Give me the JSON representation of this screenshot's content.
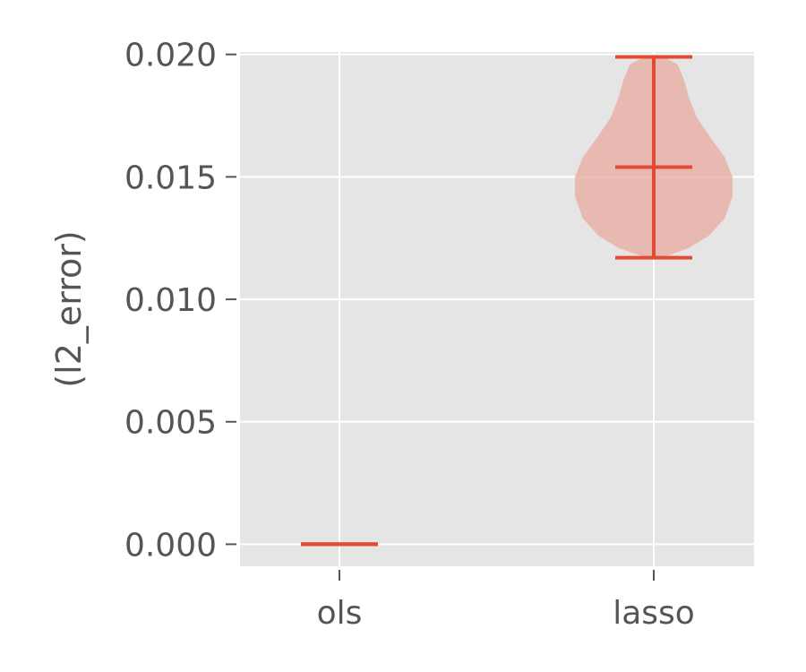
{
  "chart_data": {
    "type": "violin",
    "categories": [
      "ols",
      "lasso"
    ],
    "ylabel": "(l2_error)",
    "xlabel": "",
    "ylim": [
      -0.0009,
      0.0201
    ],
    "yticks": [
      0.0,
      0.005,
      0.01,
      0.015,
      0.02
    ],
    "ytick_labels": [
      "0.000",
      "0.005",
      "0.010",
      "0.015",
      "0.020"
    ],
    "grid": true,
    "series": [
      {
        "category": "ols",
        "min": 0.0,
        "max": 0.0,
        "mean": 0.0,
        "density": []
      },
      {
        "category": "lasso",
        "min": 0.0117,
        "max": 0.0199,
        "mean": 0.0154,
        "density": [
          [
            0.0117,
            0.1
          ],
          [
            0.0121,
            0.45
          ],
          [
            0.0126,
            0.7
          ],
          [
            0.0133,
            0.9
          ],
          [
            0.0142,
            1.0
          ],
          [
            0.015,
            1.0
          ],
          [
            0.0158,
            0.9
          ],
          [
            0.0166,
            0.72
          ],
          [
            0.0174,
            0.55
          ],
          [
            0.0182,
            0.45
          ],
          [
            0.019,
            0.38
          ],
          [
            0.0196,
            0.3
          ],
          [
            0.0199,
            0.12
          ]
        ]
      }
    ],
    "colors": {
      "line": "#e24a33",
      "fill": "#e7a99f",
      "panel": "#e5e5e5",
      "grid": "#ffffff"
    }
  }
}
